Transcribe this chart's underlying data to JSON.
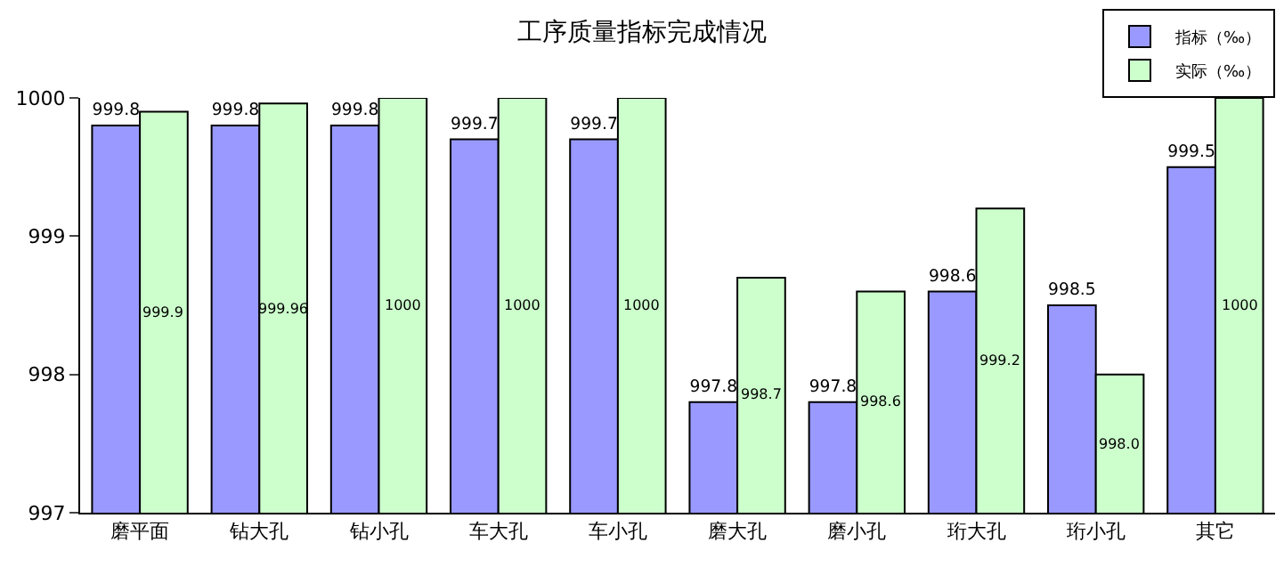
{
  "chart_data": {
    "type": "bar",
    "title": "工序质量指标完成情况",
    "categories": [
      "磨平面",
      "钻大孔",
      "钻小孔",
      "车大孔",
      "车小孔",
      "磨大孔",
      "磨小孔",
      "珩大孔",
      "珩小孔",
      "其它"
    ],
    "series": [
      {
        "name": "指标（‰）",
        "color": "#9999ff",
        "values": [
          999.8,
          999.8,
          999.8,
          999.7,
          999.7,
          997.8,
          997.8,
          998.6,
          998.5,
          999.5
        ],
        "value_labels": [
          "999.8",
          "999.8",
          "999.8",
          "999.7",
          "999.7",
          "997.8",
          "997.8",
          "998.6",
          "998.5",
          "999.5"
        ]
      },
      {
        "name": "实际（‰）",
        "color": "#ccffcc",
        "values": [
          999.9,
          999.96,
          1000,
          1000,
          1000,
          998.7,
          998.6,
          999.2,
          998.0,
          1000
        ],
        "value_labels": [
          "999.9",
          "999.96",
          "1000",
          "1000",
          "1000",
          "998.7",
          "998.6",
          "999.2",
          "998.0",
          "1000"
        ]
      }
    ],
    "ylim": [
      997,
      1000
    ],
    "yticks": [
      997,
      998,
      999,
      1000
    ],
    "legend": "top right"
  }
}
